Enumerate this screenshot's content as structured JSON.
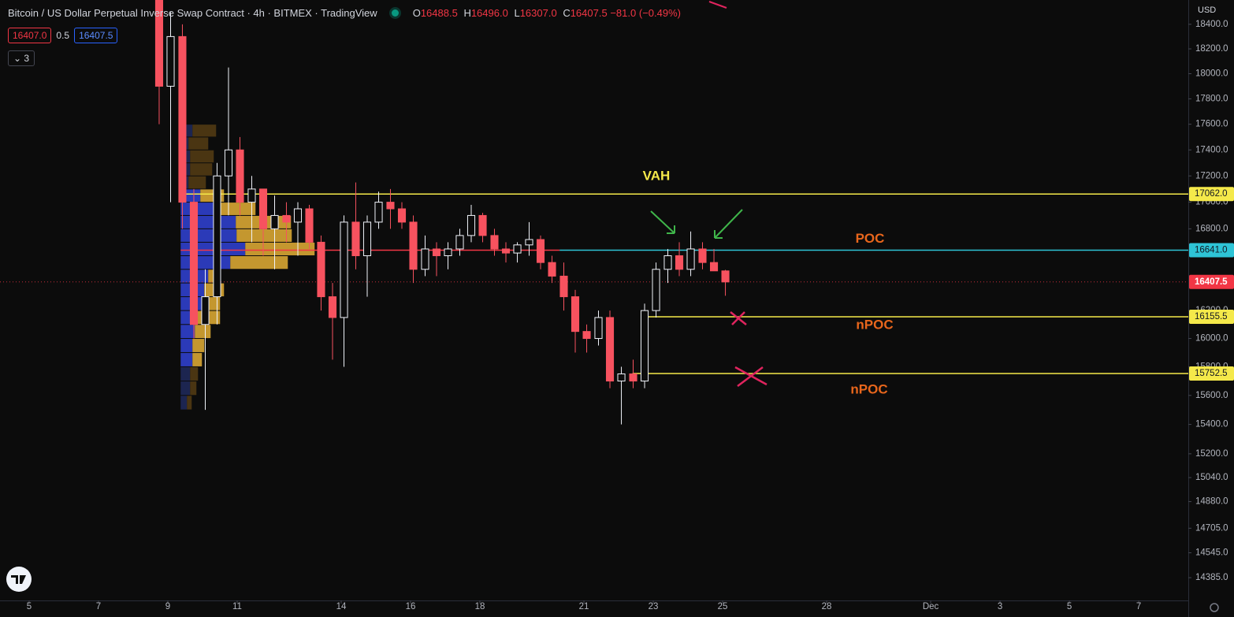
{
  "chart_data": {
    "type": "candlestick",
    "title": "Bitcoin / US Dollar Perpetual Inverse Swap Contract · 4h · BITMEX · TradingView",
    "legend": {
      "open_key": "O",
      "open": 16488.5,
      "high_key": "H",
      "high": {
        "value": 16496,
        "label": "16496.0"
      },
      "low_key": "L",
      "low": {
        "value": 16307,
        "label": "16307.0"
      },
      "close_key": "C",
      "close": 16407.5,
      "change": {
        "value": -81,
        "label": "−81.0"
      },
      "change_pct": {
        "value": -0.49,
        "label": "(−0.49%)"
      }
    },
    "bid": {
      "value": 16407,
      "label": "16407.0"
    },
    "spread": 0.5,
    "ask": 16407.5,
    "indicator_count": 3,
    "currency": "USD",
    "log_scale": true,
    "ylim": [
      14240,
      18600
    ],
    "yticks": [
      {
        "value": 18400,
        "label": "18400.0"
      },
      {
        "value": 18200,
        "label": "18200.0"
      },
      {
        "value": 18000,
        "label": "18000.0"
      },
      {
        "value": 17800,
        "label": "17800.0"
      },
      {
        "value": 17600,
        "label": "17600.0"
      },
      {
        "value": 17400,
        "label": "17400.0"
      },
      {
        "value": 17200,
        "label": "17200.0"
      },
      {
        "value": 17000,
        "label": "17000.0"
      },
      {
        "value": 16800,
        "label": "16800.0"
      },
      {
        "value": 16200,
        "label": "16200.0"
      },
      {
        "value": 16000,
        "label": "16000.0"
      },
      {
        "value": 15800,
        "label": "15800.0"
      },
      {
        "value": 15600,
        "label": "15600.0"
      },
      {
        "value": 15400,
        "label": "15400.0"
      },
      {
        "value": 15200,
        "label": "15200.0"
      },
      {
        "value": 15040,
        "label": "15040.0"
      },
      {
        "value": 14880,
        "label": "14880.0"
      },
      {
        "value": 14705,
        "label": "14705.0"
      },
      {
        "value": 14545,
        "label": "14545.0"
      },
      {
        "value": 14385,
        "label": "14385.0"
      }
    ],
    "xlim": [
      4.16,
      38.43
    ],
    "xticks": [
      5,
      7,
      9,
      11,
      14,
      16,
      18,
      21,
      23,
      25,
      28,
      {
        "value": 31,
        "label": "Dec"
      },
      {
        "value": 33,
        "label": "3"
      },
      {
        "value": 35,
        "label": "5"
      },
      {
        "value": 37,
        "label": "7"
      }
    ],
    "up_color": "#f0f3fa",
    "down_color": "#f7525f",
    "candles": {
      "x": [
        8.75,
        9.08,
        9.42,
        9.75,
        10.08,
        10.42,
        10.75,
        11.08,
        11.42,
        11.75,
        12.08,
        12.42,
        12.75,
        13.08,
        13.42,
        13.75,
        14.08,
        14.42,
        14.75,
        15.08,
        15.42,
        15.75,
        16.08,
        16.42,
        16.75,
        17.08,
        17.42,
        17.75,
        18.08,
        18.42,
        18.75,
        19.08,
        19.42,
        19.75,
        20.08,
        20.42,
        20.75,
        21.08,
        21.42,
        21.75,
        22.08,
        22.42,
        22.75,
        23.08,
        23.42,
        23.75,
        24.08,
        24.42,
        24.75,
        25.08
      ],
      "ohlc": [
        [
          18600,
          18700,
          17600,
          17900
        ],
        [
          17900,
          18500,
          17000,
          18300
        ],
        [
          18300,
          18400,
          16800,
          17000
        ],
        [
          17000,
          17100,
          16000,
          16100
        ],
        [
          16100,
          16500,
          15500,
          16300
        ],
        [
          16300,
          17300,
          16100,
          17200
        ],
        [
          17200,
          18050,
          16900,
          17400
        ],
        [
          17400,
          17500,
          16900,
          17000
        ],
        [
          17000,
          17200,
          16700,
          17100
        ],
        [
          17100,
          17100,
          16600,
          16800
        ],
        [
          16800,
          17050,
          16500,
          16900
        ],
        [
          16900,
          17000,
          16700,
          16850
        ],
        [
          16850,
          17000,
          16600,
          16950
        ],
        [
          16950,
          16980,
          16650,
          16700
        ],
        [
          16700,
          16750,
          16200,
          16300
        ],
        [
          16300,
          16400,
          15850,
          16150
        ],
        [
          16150,
          16900,
          15800,
          16850
        ],
        [
          16850,
          17150,
          16500,
          16600
        ],
        [
          16600,
          16900,
          16300,
          16850
        ],
        [
          16850,
          17080,
          16800,
          17000
        ],
        [
          17000,
          17100,
          16800,
          16950
        ],
        [
          16950,
          17000,
          16800,
          16850
        ],
        [
          16850,
          16900,
          16400,
          16500
        ],
        [
          16500,
          16750,
          16450,
          16650
        ],
        [
          16650,
          16700,
          16450,
          16600
        ],
        [
          16600,
          16700,
          16500,
          16650
        ],
        [
          16650,
          16800,
          16600,
          16750
        ],
        [
          16750,
          16980,
          16700,
          16900
        ],
        [
          16900,
          16920,
          16700,
          16750
        ],
        [
          16750,
          16800,
          16600,
          16650
        ],
        [
          16650,
          16700,
          16550,
          16620
        ],
        [
          16620,
          16700,
          16550,
          16680
        ],
        [
          16680,
          16850,
          16600,
          16720
        ],
        [
          16720,
          16750,
          16500,
          16550
        ],
        [
          16550,
          16600,
          16400,
          16450
        ],
        [
          16450,
          16550,
          16200,
          16300
        ],
        [
          16300,
          16350,
          15900,
          16050
        ],
        [
          16050,
          16100,
          15900,
          16000
        ],
        [
          16000,
          16200,
          15950,
          16150
        ],
        [
          16150,
          16200,
          15650,
          15700
        ],
        [
          15700,
          15800,
          15400,
          15750
        ],
        [
          15750,
          15850,
          15650,
          15700
        ],
        [
          15700,
          16250,
          15650,
          16200
        ],
        [
          16200,
          16550,
          16150,
          16500
        ],
        [
          16500,
          16650,
          16400,
          16600
        ],
        [
          16600,
          16700,
          16450,
          16500
        ],
        [
          16500,
          16780,
          16450,
          16650
        ],
        [
          16650,
          16700,
          16500,
          16550
        ],
        [
          16550,
          16650,
          16500,
          16488.5
        ],
        [
          16488.5,
          16496,
          16307,
          16407.5
        ]
      ]
    },
    "volume_profile": {
      "x": 9.37,
      "value_area": [
        15752.5,
        17062
      ],
      "colors": {
        "up": "#2b3ab8",
        "down": "#c4972f",
        "up_outside": "#1c2550",
        "down_outside": "#4a3512"
      },
      "rows": [
        [
          15500,
          15600,
          8,
          6
        ],
        [
          15600,
          15700,
          12,
          8
        ],
        [
          15700,
          15800,
          12,
          10
        ],
        [
          15800,
          15900,
          15,
          12
        ],
        [
          15900,
          16000,
          15,
          15
        ],
        [
          16000,
          16100,
          18,
          20
        ],
        [
          16100,
          16200,
          20,
          30
        ],
        [
          16200,
          16300,
          30,
          20
        ],
        [
          16300,
          16400,
          30,
          25
        ],
        [
          16400,
          16500,
          35,
          8
        ],
        [
          16500,
          16600,
          63,
          73
        ],
        [
          16600,
          16700,
          82,
          88
        ],
        [
          16700,
          16800,
          71,
          70
        ],
        [
          16800,
          16900,
          70,
          70
        ],
        [
          16900,
          17000,
          45,
          50
        ],
        [
          17000,
          17100,
          25,
          30
        ],
        [
          17100,
          17200,
          10,
          22
        ],
        [
          17200,
          17300,
          12,
          28
        ],
        [
          17300,
          17400,
          12,
          30
        ],
        [
          17400,
          17500,
          10,
          25
        ],
        [
          17500,
          17600,
          15,
          30
        ]
      ]
    },
    "levels": [
      {
        "annotation": "VAH",
        "value": 17062,
        "label": "17062.0",
        "from": 9.37,
        "color": "#f5e94a",
        "text_color": "#f5e94a"
      },
      {
        "annotation": "POC",
        "value": 16641,
        "label": "16641.0",
        "from": 20.3,
        "color": "#2ec4d6",
        "text_color": "#e8661c",
        "developing": {
          "from": 9.37,
          "color": "#f23645"
        }
      },
      {
        "annotation": "nPOC",
        "value": 16155.5,
        "label": "16155.5",
        "from": 22.75,
        "color": "#f5e94a",
        "text_color": "#e8661c"
      },
      {
        "annotation": "nPOC",
        "value": 15752.5,
        "label": "15752.5",
        "from": 22.4,
        "color": "#f5e94a",
        "text_color": "#e8661c"
      }
    ],
    "last_price": {
      "value": 16407.5,
      "label": "16407.5",
      "color": "#f23645"
    }
  }
}
